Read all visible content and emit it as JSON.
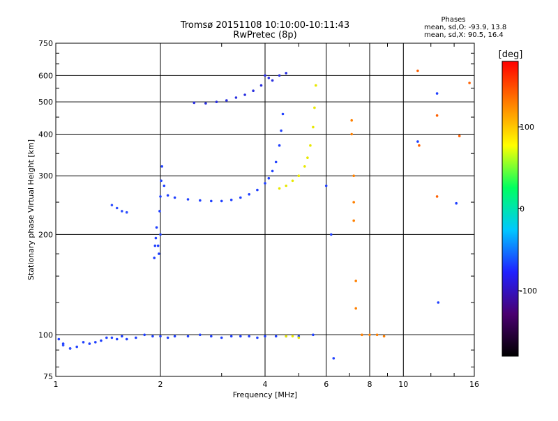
{
  "chart_data": {
    "type": "scatter",
    "title": "Tromsø 20151108 10:10:00-10:11:43",
    "subtitle": "RwPretec (8p)",
    "xlabel": "Frequency [MHz]",
    "ylabel": "Stationary phase Virtual Height [km]",
    "xscale": "log",
    "yscale": "log",
    "xlim": [
      1,
      16
    ],
    "ylim": [
      75,
      750
    ],
    "x_ticks": [
      1,
      2,
      4,
      6,
      8,
      10,
      16
    ],
    "x_tick_labels": [
      "1",
      "2",
      "4",
      "6",
      "8",
      "10",
      "16"
    ],
    "y_ticks": [
      75,
      100,
      200,
      300,
      400,
      500,
      600,
      750
    ],
    "y_tick_labels": [
      "75",
      "100",
      "200",
      "300",
      "400",
      "500",
      "600",
      "750"
    ],
    "grid": true,
    "stats": {
      "heading": "Phases",
      "line_o": "mean, sd,O: -93.9, 13.8",
      "line_x": "mean, sd,X:  90.5, 16.4"
    },
    "colorbar": {
      "label": "[deg]",
      "range": [
        -180,
        180
      ],
      "ticks": [
        100,
        0,
        -100
      ],
      "tick_labels": [
        "100",
        "0",
        "-100"
      ],
      "colormap": [
        "#000000",
        "#4a0070",
        "#2020ff",
        "#00c8ff",
        "#00ff60",
        "#ffff00",
        "#ff8000",
        "#ff0000"
      ]
    },
    "series": [
      {
        "name": "",
        "color": "#2040ff",
        "trace_points": [
          [
            1.02,
            97
          ],
          [
            1.05,
            94
          ],
          [
            1.1,
            91
          ],
          [
            1.15,
            92
          ],
          [
            1.2,
            95
          ],
          [
            1.25,
            94
          ],
          [
            1.3,
            95
          ],
          [
            1.35,
            96
          ],
          [
            1.4,
            98
          ],
          [
            1.45,
            98
          ],
          [
            1.5,
            97
          ],
          [
            1.55,
            99
          ],
          [
            1.6,
            97
          ],
          [
            1.7,
            98
          ],
          [
            1.8,
            100
          ],
          [
            1.9,
            99
          ],
          [
            2.0,
            99
          ],
          [
            2.1,
            98
          ],
          [
            2.2,
            99
          ],
          [
            2.4,
            99
          ],
          [
            2.6,
            100
          ],
          [
            2.8,
            99
          ],
          [
            3.0,
            98
          ],
          [
            3.2,
            99
          ],
          [
            3.4,
            99
          ],
          [
            3.6,
            99
          ],
          [
            3.8,
            98
          ],
          [
            4.0,
            99
          ],
          [
            4.3,
            99
          ],
          [
            4.6,
            99
          ],
          [
            5.0,
            99
          ],
          [
            5.5,
            100
          ]
        ]
      },
      {
        "name": "",
        "color": "#2040ff",
        "trace_points": [
          [
            1.92,
            170
          ],
          [
            1.93,
            185
          ],
          [
            1.94,
            195
          ],
          [
            1.95,
            210
          ],
          [
            1.97,
            185
          ],
          [
            1.98,
            175
          ],
          [
            2.0,
            200
          ],
          [
            1.99,
            235
          ],
          [
            2.0,
            260
          ],
          [
            2.01,
            290
          ],
          [
            2.02,
            320
          ],
          [
            2.05,
            280
          ],
          [
            2.1,
            262
          ],
          [
            2.2,
            258
          ],
          [
            2.4,
            255
          ],
          [
            2.6,
            253
          ],
          [
            2.8,
            252
          ],
          [
            3.0,
            252
          ],
          [
            3.2,
            254
          ],
          [
            3.4,
            258
          ],
          [
            3.6,
            264
          ],
          [
            3.8,
            272
          ],
          [
            4.0,
            285
          ],
          [
            4.1,
            295
          ],
          [
            4.2,
            310
          ],
          [
            4.3,
            330
          ],
          [
            4.4,
            370
          ],
          [
            4.45,
            410
          ],
          [
            4.5,
            460
          ]
        ]
      },
      {
        "name": "",
        "color": "#2a30e0",
        "trace_points": [
          [
            2.5,
            497
          ],
          [
            2.7,
            495
          ],
          [
            2.9,
            500
          ],
          [
            3.1,
            505
          ],
          [
            3.3,
            515
          ],
          [
            3.5,
            525
          ],
          [
            3.7,
            540
          ],
          [
            3.9,
            560
          ],
          [
            4.0,
            600
          ],
          [
            4.1,
            590
          ],
          [
            4.2,
            580
          ],
          [
            4.4,
            600
          ],
          [
            4.6,
            610
          ]
        ]
      },
      {
        "name": "",
        "color": "#e8e800",
        "trace_points": [
          [
            4.4,
            275
          ],
          [
            4.6,
            280
          ],
          [
            4.8,
            290
          ],
          [
            5.0,
            300
          ],
          [
            5.2,
            320
          ],
          [
            5.3,
            340
          ],
          [
            5.4,
            370
          ],
          [
            5.5,
            420
          ],
          [
            5.55,
            480
          ],
          [
            5.6,
            560
          ],
          [
            4.6,
            99
          ],
          [
            4.8,
            99
          ],
          [
            5.0,
            98
          ]
        ]
      },
      {
        "name": "",
        "color": "#ff8000",
        "trace_points": [
          [
            7.1,
            440
          ],
          [
            7.1,
            400
          ],
          [
            7.2,
            300
          ],
          [
            7.2,
            250
          ],
          [
            7.2,
            220
          ],
          [
            7.3,
            145
          ],
          [
            7.3,
            120
          ],
          [
            7.6,
            100
          ],
          [
            8.0,
            100
          ],
          [
            8.4,
            100
          ],
          [
            8.8,
            99
          ]
        ]
      },
      {
        "name": "",
        "color": "#3050ff",
        "trace_points": [
          [
            1.45,
            245
          ],
          [
            1.5,
            240
          ],
          [
            1.55,
            235
          ],
          [
            1.6,
            233
          ],
          [
            1.05,
            93
          ],
          [
            1.1,
            91
          ]
        ]
      },
      {
        "name": "",
        "color": "#ff6000",
        "trace_points": [
          [
            11.0,
            620
          ],
          [
            12.5,
            455
          ],
          [
            12.5,
            260
          ],
          [
            14.5,
            395
          ],
          [
            11.1,
            370
          ],
          [
            15.5,
            570
          ]
        ]
      },
      {
        "name": "",
        "color": "#2040ff",
        "trace_points": [
          [
            11.0,
            380
          ],
          [
            12.5,
            530
          ],
          [
            12.6,
            125
          ],
          [
            14.2,
            248
          ],
          [
            6.2,
            200
          ],
          [
            6.3,
            85
          ],
          [
            6.0,
            280
          ]
        ]
      }
    ]
  }
}
